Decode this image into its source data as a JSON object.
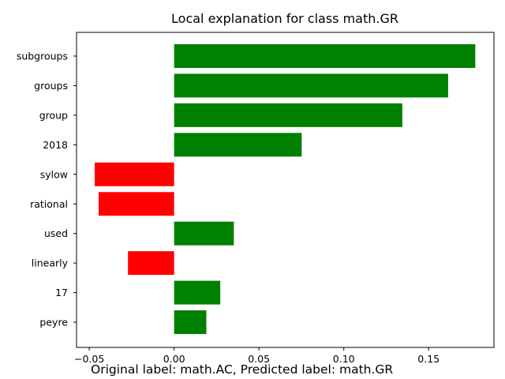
{
  "chart_data": {
    "type": "bar",
    "orientation": "horizontal",
    "title": "Local explanation for class math.GR",
    "xlabel": "",
    "ylabel": "",
    "categories": [
      "subgroups",
      "groups",
      "group",
      "2018",
      "sylow",
      "rational",
      "used",
      "linearly",
      "17",
      "peyre"
    ],
    "values": [
      0.1775,
      0.1615,
      0.1345,
      0.0752,
      -0.0468,
      -0.0445,
      0.0352,
      -0.0272,
      0.0272,
      0.019
    ],
    "xlim": [
      -0.0575,
      0.1885
    ],
    "xticks": [
      -0.05,
      0.0,
      0.05,
      0.1,
      0.15
    ],
    "xtick_labels": [
      "−0.05",
      "0.00",
      "0.05",
      "0.10",
      "0.15"
    ],
    "grid": false,
    "colors": {
      "positive": "#008000",
      "negative": "#ff0000"
    }
  },
  "caption": "Original label: math.AC, Predicted label: math.GR"
}
